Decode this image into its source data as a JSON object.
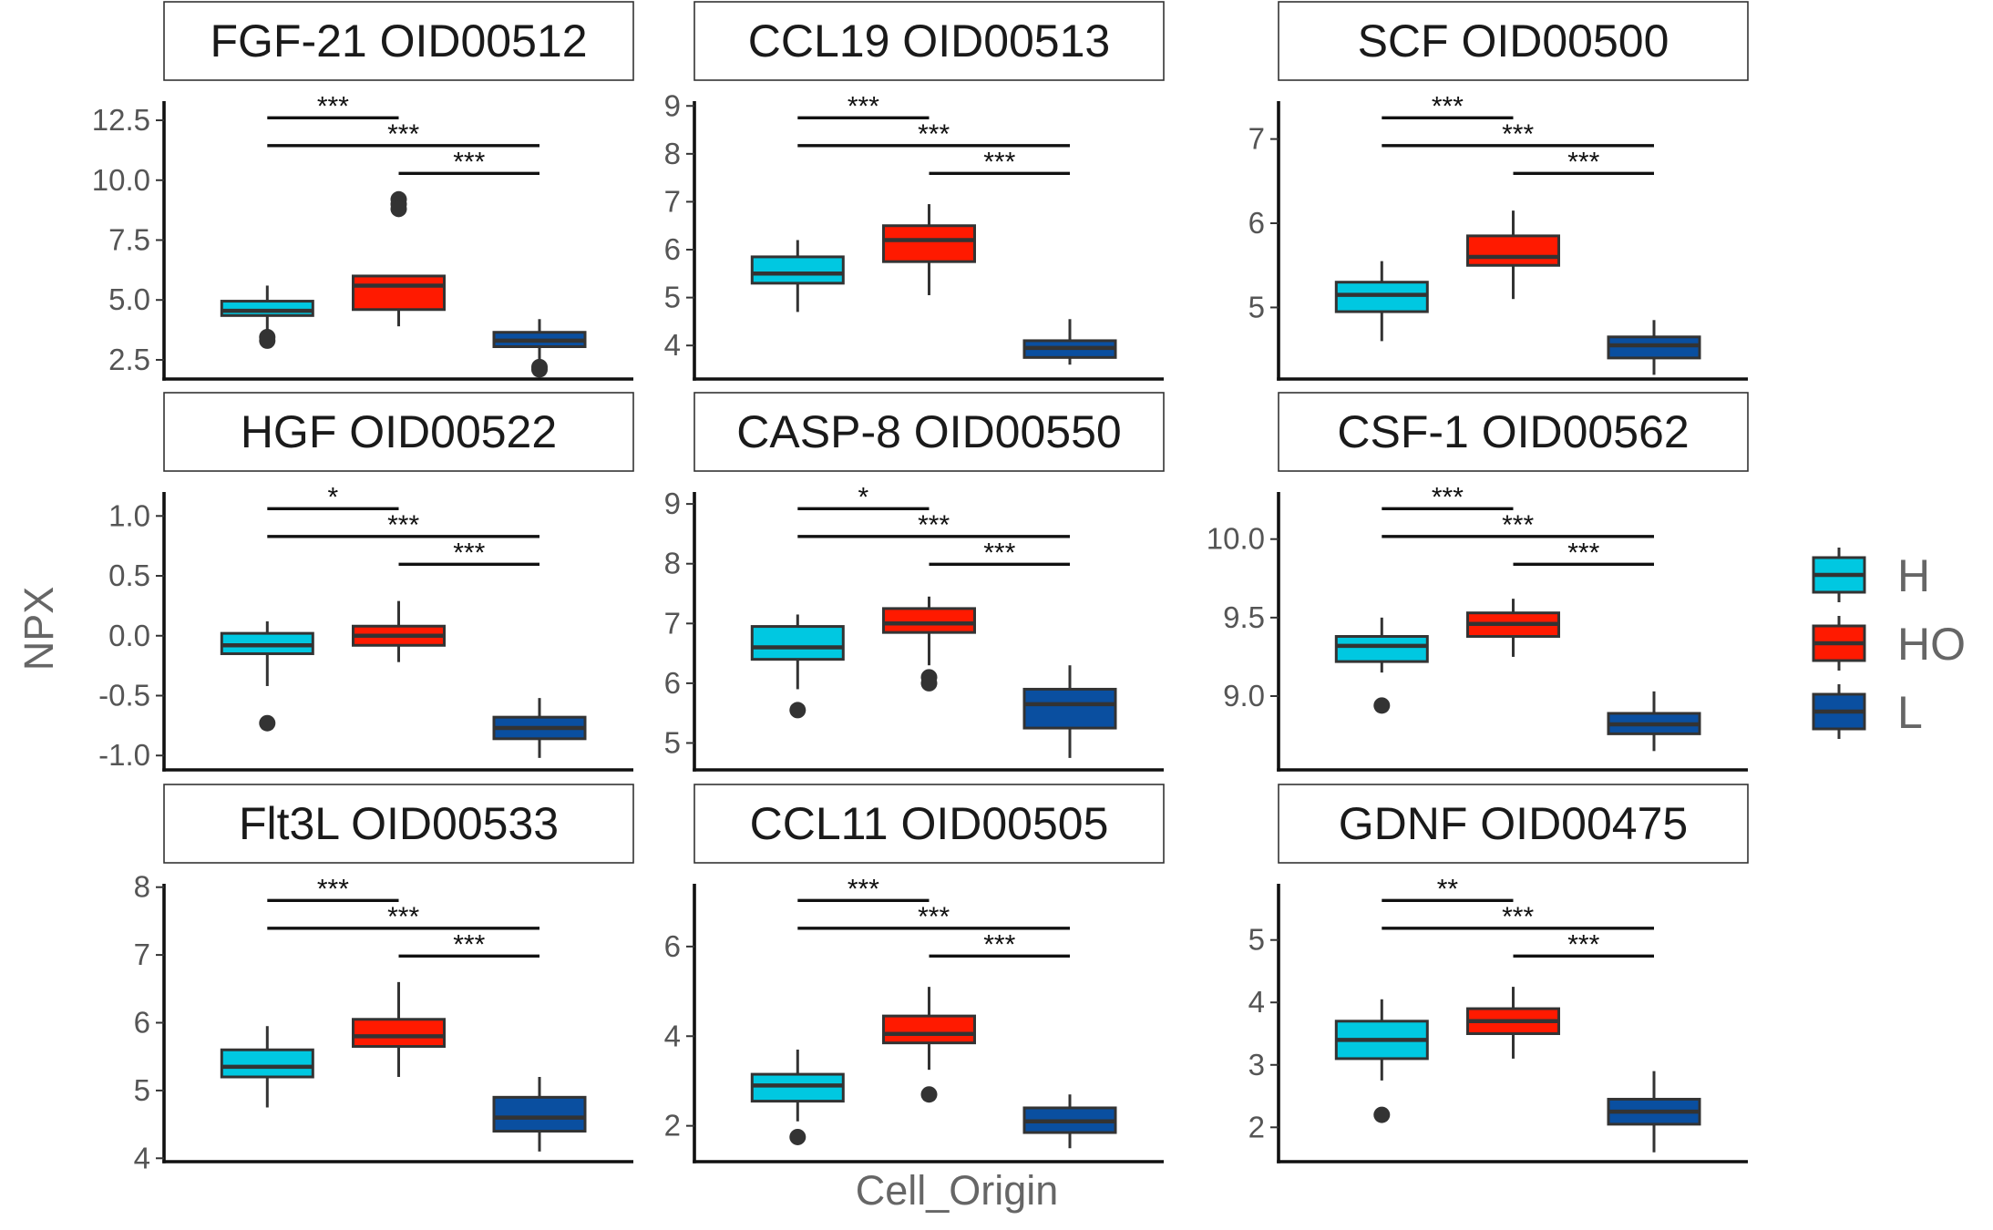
{
  "chart_data": {
    "type": "box",
    "xlabel": "Cell_Origin",
    "ylabel": "NPX",
    "groups": [
      "H",
      "HO",
      "L"
    ],
    "colors": {
      "H": "#00C8E1",
      "HO": "#FF1A00",
      "L": "#0A4FA0"
    },
    "legend": {
      "position": "right",
      "items": [
        "H",
        "HO",
        "L"
      ]
    },
    "panels": [
      {
        "title": "FGF-21 OID00512",
        "ylim": [
          1.7,
          13.3
        ],
        "ticks": [
          2.5,
          5.0,
          7.5,
          10.0,
          12.5
        ],
        "tick_labels": [
          "2.5",
          "5.0",
          "7.5",
          "10.0",
          "12.5"
        ],
        "boxes": [
          {
            "group": "H",
            "q1": 4.35,
            "median": 4.55,
            "q3": 4.95,
            "lower": 3.6,
            "upper": 5.6,
            "outliers": [
              3.45,
              3.3
            ]
          },
          {
            "group": "HO",
            "q1": 4.6,
            "median": 5.6,
            "q3": 6.0,
            "lower": 3.9,
            "upper": 6.0,
            "outliers": [
              9.2,
              9.0,
              8.8
            ]
          },
          {
            "group": "L",
            "q1": 3.05,
            "median": 3.3,
            "q3": 3.65,
            "lower": 2.5,
            "upper": 4.2,
            "outliers": [
              2.2,
              2.1
            ]
          }
        ],
        "comparisons": [
          {
            "pair": [
              "H",
              "HO"
            ],
            "label": "***"
          },
          {
            "pair": [
              "H",
              "L"
            ],
            "label": "***"
          },
          {
            "pair": [
              "HO",
              "L"
            ],
            "label": "***"
          }
        ]
      },
      {
        "title": "CCL19 OID00513",
        "ylim": [
          3.3,
          9.1
        ],
        "ticks": [
          4,
          5,
          6,
          7,
          8,
          9
        ],
        "tick_labels": [
          "4",
          "5",
          "6",
          "7",
          "8",
          "9"
        ],
        "boxes": [
          {
            "group": "H",
            "q1": 5.3,
            "median": 5.5,
            "q3": 5.85,
            "lower": 4.7,
            "upper": 6.2,
            "outliers": []
          },
          {
            "group": "HO",
            "q1": 5.75,
            "median": 6.2,
            "q3": 6.5,
            "lower": 5.05,
            "upper": 6.95,
            "outliers": []
          },
          {
            "group": "L",
            "q1": 3.75,
            "median": 3.95,
            "q3": 4.1,
            "lower": 3.6,
            "upper": 4.55,
            "outliers": []
          }
        ],
        "comparisons": [
          {
            "pair": [
              "H",
              "HO"
            ],
            "label": "***"
          },
          {
            "pair": [
              "H",
              "L"
            ],
            "label": "***"
          },
          {
            "pair": [
              "HO",
              "L"
            ],
            "label": "***"
          }
        ]
      },
      {
        "title": "SCF OID00500",
        "ylim": [
          4.15,
          7.45
        ],
        "ticks": [
          5,
          6,
          7
        ],
        "tick_labels": [
          "5",
          "6",
          "7"
        ],
        "boxes": [
          {
            "group": "H",
            "q1": 4.95,
            "median": 5.15,
            "q3": 5.3,
            "lower": 4.6,
            "upper": 5.55,
            "outliers": []
          },
          {
            "group": "HO",
            "q1": 5.5,
            "median": 5.6,
            "q3": 5.85,
            "lower": 5.1,
            "upper": 6.15,
            "outliers": []
          },
          {
            "group": "L",
            "q1": 4.4,
            "median": 4.55,
            "q3": 4.65,
            "lower": 4.2,
            "upper": 4.85,
            "outliers": []
          }
        ],
        "comparisons": [
          {
            "pair": [
              "H",
              "HO"
            ],
            "label": "***"
          },
          {
            "pair": [
              "H",
              "L"
            ],
            "label": "***"
          },
          {
            "pair": [
              "HO",
              "L"
            ],
            "label": "***"
          }
        ]
      },
      {
        "title": "HGF OID00522",
        "ylim": [
          -1.12,
          1.2
        ],
        "ticks": [
          -1.0,
          -0.5,
          0.0,
          0.5,
          1.0
        ],
        "tick_labels": [
          "-1.0",
          "-0.5",
          "0.0",
          "0.5",
          "1.0"
        ],
        "boxes": [
          {
            "group": "H",
            "q1": -0.15,
            "median": -0.08,
            "q3": 0.02,
            "lower": -0.42,
            "upper": 0.12,
            "outliers": [
              -0.73
            ]
          },
          {
            "group": "HO",
            "q1": -0.08,
            "median": 0.0,
            "q3": 0.08,
            "lower": -0.22,
            "upper": 0.29,
            "outliers": []
          },
          {
            "group": "L",
            "q1": -0.86,
            "median": -0.77,
            "q3": -0.68,
            "lower": -1.02,
            "upper": -0.52,
            "outliers": []
          }
        ],
        "comparisons": [
          {
            "pair": [
              "H",
              "HO"
            ],
            "label": "*"
          },
          {
            "pair": [
              "H",
              "L"
            ],
            "label": "***"
          },
          {
            "pair": [
              "HO",
              "L"
            ],
            "label": "***"
          }
        ]
      },
      {
        "title": "CASP-8 OID00550",
        "ylim": [
          4.55,
          9.2
        ],
        "ticks": [
          5,
          6,
          7,
          8,
          9
        ],
        "tick_labels": [
          "5",
          "6",
          "7",
          "8",
          "9"
        ],
        "boxes": [
          {
            "group": "H",
            "q1": 6.4,
            "median": 6.6,
            "q3": 6.95,
            "lower": 5.9,
            "upper": 7.15,
            "outliers": [
              5.55
            ]
          },
          {
            "group": "HO",
            "q1": 6.85,
            "median": 7.0,
            "q3": 7.25,
            "lower": 6.3,
            "upper": 7.45,
            "outliers": [
              6.1,
              6.0
            ]
          },
          {
            "group": "L",
            "q1": 5.25,
            "median": 5.65,
            "q3": 5.9,
            "lower": 4.75,
            "upper": 6.3,
            "outliers": []
          }
        ],
        "comparisons": [
          {
            "pair": [
              "H",
              "HO"
            ],
            "label": "*"
          },
          {
            "pair": [
              "H",
              "L"
            ],
            "label": "***"
          },
          {
            "pair": [
              "HO",
              "L"
            ],
            "label": "***"
          }
        ]
      },
      {
        "title": "CSF-1 OID00562",
        "ylim": [
          8.53,
          10.3
        ],
        "ticks": [
          9.0,
          9.5,
          10.0
        ],
        "tick_labels": [
          "9.0",
          "9.5",
          "10.0"
        ],
        "boxes": [
          {
            "group": "H",
            "q1": 9.22,
            "median": 9.32,
            "q3": 9.38,
            "lower": 9.15,
            "upper": 9.5,
            "outliers": [
              8.94
            ]
          },
          {
            "group": "HO",
            "q1": 9.38,
            "median": 9.46,
            "q3": 9.53,
            "lower": 9.25,
            "upper": 9.62,
            "outliers": []
          },
          {
            "group": "L",
            "q1": 8.76,
            "median": 8.82,
            "q3": 8.89,
            "lower": 8.65,
            "upper": 9.03,
            "outliers": []
          }
        ],
        "comparisons": [
          {
            "pair": [
              "H",
              "HO"
            ],
            "label": "***"
          },
          {
            "pair": [
              "H",
              "L"
            ],
            "label": "***"
          },
          {
            "pair": [
              "HO",
              "L"
            ],
            "label": "***"
          }
        ]
      },
      {
        "title": "Flt3L OID00533",
        "ylim": [
          3.95,
          8.05
        ],
        "ticks": [
          4,
          5,
          6,
          7,
          8
        ],
        "tick_labels": [
          "4",
          "5",
          "6",
          "7",
          "8"
        ],
        "boxes": [
          {
            "group": "H",
            "q1": 5.2,
            "median": 5.35,
            "q3": 5.6,
            "lower": 4.75,
            "upper": 5.95,
            "outliers": []
          },
          {
            "group": "HO",
            "q1": 5.65,
            "median": 5.8,
            "q3": 6.05,
            "lower": 5.2,
            "upper": 6.6,
            "outliers": []
          },
          {
            "group": "L",
            "q1": 4.4,
            "median": 4.6,
            "q3": 4.9,
            "lower": 4.1,
            "upper": 5.2,
            "outliers": []
          }
        ],
        "comparisons": [
          {
            "pair": [
              "H",
              "HO"
            ],
            "label": "***"
          },
          {
            "pair": [
              "H",
              "L"
            ],
            "label": "***"
          },
          {
            "pair": [
              "HO",
              "L"
            ],
            "label": "***"
          }
        ]
      },
      {
        "title": "CCL11 OID00505",
        "ylim": [
          1.2,
          7.4
        ],
        "ticks": [
          2,
          4,
          6
        ],
        "tick_labels": [
          "2",
          "4",
          "6"
        ],
        "boxes": [
          {
            "group": "H",
            "q1": 2.55,
            "median": 2.9,
            "q3": 3.15,
            "lower": 2.1,
            "upper": 3.7,
            "outliers": [
              1.75
            ]
          },
          {
            "group": "HO",
            "q1": 3.85,
            "median": 4.05,
            "q3": 4.45,
            "lower": 3.25,
            "upper": 5.1,
            "outliers": [
              2.7
            ]
          },
          {
            "group": "L",
            "q1": 1.85,
            "median": 2.1,
            "q3": 2.4,
            "lower": 1.5,
            "upper": 2.7,
            "outliers": []
          }
        ],
        "comparisons": [
          {
            "pair": [
              "H",
              "HO"
            ],
            "label": "***"
          },
          {
            "pair": [
              "H",
              "L"
            ],
            "label": "***"
          },
          {
            "pair": [
              "HO",
              "L"
            ],
            "label": "***"
          }
        ]
      },
      {
        "title": "GDNF OID00475",
        "ylim": [
          1.45,
          5.9
        ],
        "ticks": [
          2,
          3,
          4,
          5
        ],
        "tick_labels": [
          "2",
          "3",
          "4",
          "5"
        ],
        "boxes": [
          {
            "group": "H",
            "q1": 3.1,
            "median": 3.4,
            "q3": 3.7,
            "lower": 2.75,
            "upper": 4.05,
            "outliers": [
              2.2
            ]
          },
          {
            "group": "HO",
            "q1": 3.5,
            "median": 3.7,
            "q3": 3.9,
            "lower": 3.1,
            "upper": 4.25,
            "outliers": []
          },
          {
            "group": "L",
            "q1": 2.05,
            "median": 2.25,
            "q3": 2.45,
            "lower": 1.6,
            "upper": 2.9,
            "outliers": []
          }
        ],
        "comparisons": [
          {
            "pair": [
              "H",
              "HO"
            ],
            "label": "**"
          },
          {
            "pair": [
              "H",
              "L"
            ],
            "label": "***"
          },
          {
            "pair": [
              "HO",
              "L"
            ],
            "label": "***"
          }
        ]
      }
    ]
  }
}
